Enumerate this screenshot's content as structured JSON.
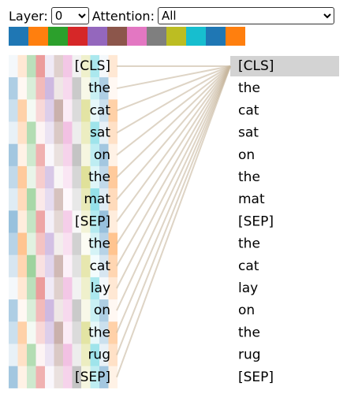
{
  "controls": {
    "layer_label": "Layer:",
    "layer_value": "0",
    "attention_label": "Attention:",
    "attention_value": "All"
  },
  "left_tokens": [
    "[CLS]",
    "the",
    "cat",
    "sat",
    "on",
    "the",
    "mat",
    "[SEP]",
    "the",
    "cat",
    "lay",
    "on",
    "the",
    "rug",
    "[SEP]"
  ],
  "right_tokens": [
    "[CLS]",
    "the",
    "cat",
    "sat",
    "on",
    "the",
    "mat",
    "[SEP]",
    "the",
    "cat",
    "lay",
    "on",
    "the",
    "rug",
    "[SEP]"
  ]
}
